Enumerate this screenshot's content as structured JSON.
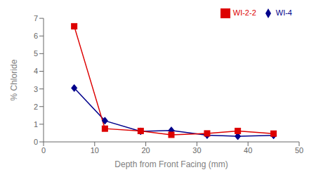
{
  "chart_data": {
    "type": "line",
    "x": [
      6,
      12,
      19,
      25,
      32,
      38,
      45
    ],
    "series": [
      {
        "name": "WI-4",
        "color": "#00008B",
        "marker": "diamond",
        "values": [
          3.05,
          1.2,
          0.6,
          0.65,
          0.38,
          0.32,
          0.37
        ]
      },
      {
        "name": "WI-2-2",
        "color": "#DD0000",
        "marker": "square",
        "values": [
          6.55,
          0.75,
          0.62,
          0.4,
          0.48,
          0.62,
          0.47
        ]
      }
    ],
    "xlabel": "Depth from Front Facing (mm)",
    "ylabel": "% Chloride",
    "xlim": [
      0,
      50
    ],
    "ylim": [
      0,
      7
    ],
    "xticks": [
      0,
      10,
      20,
      30,
      40,
      50
    ],
    "yticks": [
      0,
      1,
      2,
      3,
      4,
      5,
      6,
      7
    ],
    "grid": false,
    "legend": "upper right"
  }
}
